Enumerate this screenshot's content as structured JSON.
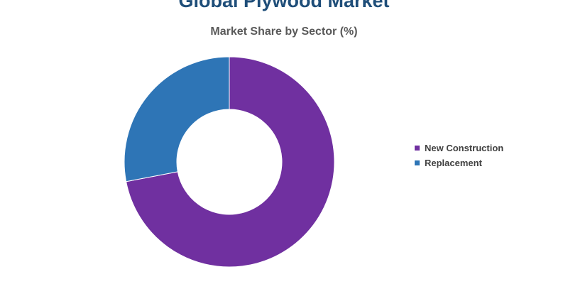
{
  "chart_data": {
    "type": "pie",
    "title": "Global Plywood Market",
    "subtitle": "Market Share by Sector (%)",
    "donut": true,
    "legend_position": "right",
    "start_angle_deg": 0,
    "series": [
      {
        "name": "New Construction",
        "value": 72,
        "color": "#7030a0"
      },
      {
        "name": "Replacement",
        "value": 28,
        "color": "#2e75b6"
      }
    ]
  }
}
